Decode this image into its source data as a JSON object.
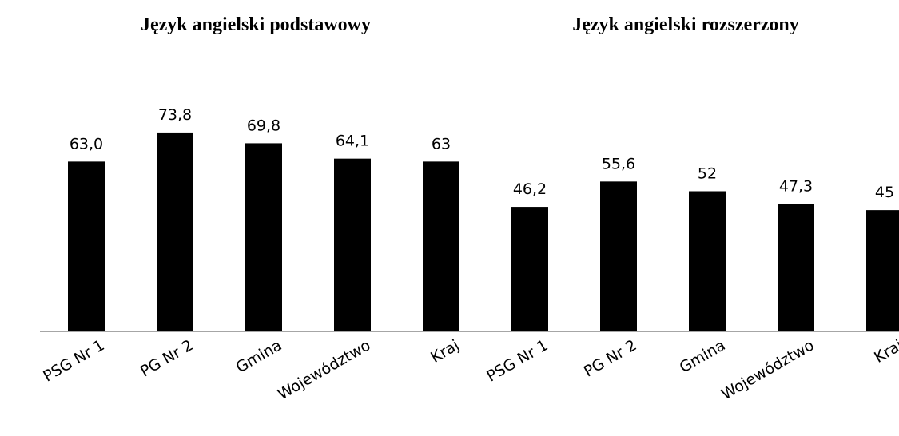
{
  "chart_data": [
    {
      "type": "bar",
      "title": "Język angielski podstawowy",
      "categories": [
        "PSG Nr 1",
        "PG Nr 2",
        "Gmina",
        "Województwo",
        "Kraj"
      ],
      "values": [
        63.0,
        73.8,
        69.8,
        64.1,
        63
      ],
      "value_labels": [
        "63,0",
        "73,8",
        "69,8",
        "64,1",
        "63"
      ],
      "color": "#000000",
      "ylim": [
        0,
        80
      ]
    },
    {
      "type": "bar",
      "title": "Język angielski  rozszerzony",
      "categories": [
        "PSG Nr 1",
        "PG Nr 2",
        "Gmina",
        "Województwo",
        "Kraj"
      ],
      "values": [
        46.2,
        55.6,
        52,
        47.3,
        45
      ],
      "value_labels": [
        "46,2",
        "55,6",
        "52",
        "47,3",
        "45"
      ],
      "color": "#000000",
      "ylim": [
        0,
        80
      ]
    }
  ]
}
